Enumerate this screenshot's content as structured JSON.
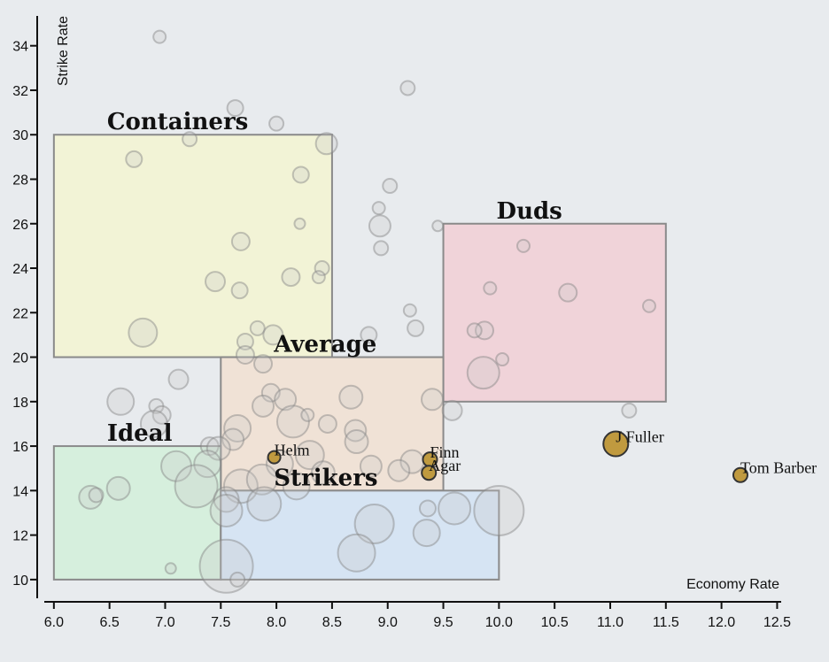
{
  "chart_data": {
    "type": "scatter",
    "title": "",
    "xlabel": "Economy Rate",
    "ylabel": "Strike Rate",
    "xlim": [
      5.85,
      12.6
    ],
    "ylim": [
      9.0,
      35.5
    ],
    "x_ticks": [
      "6.0",
      "6.5",
      "7.0",
      "7.5",
      "8.0",
      "8.5",
      "9.0",
      "9.5",
      "10.0",
      "10.5",
      "11.0",
      "11.5",
      "12.0",
      "12.5"
    ],
    "y_ticks": [
      "10",
      "12",
      "14",
      "16",
      "18",
      "20",
      "22",
      "24",
      "26",
      "28",
      "30",
      "32",
      "34"
    ],
    "zones": [
      {
        "label": "Containers",
        "x0": 6.0,
        "x1": 8.5,
        "y0": 20,
        "y1": 30,
        "color": "#f2f3d6"
      },
      {
        "label": "Duds",
        "x0": 9.5,
        "x1": 11.5,
        "y0": 18,
        "y1": 26,
        "color": "#f0d3d9"
      },
      {
        "label": "Average",
        "x0": 7.5,
        "x1": 9.5,
        "y0": 14,
        "y1": 20,
        "color": "#f0e2d6"
      },
      {
        "label": "Ideal",
        "x0": 6.0,
        "x1": 7.5,
        "y0": 10,
        "y1": 16,
        "color": "#d6efdd"
      },
      {
        "label": "Strikers",
        "x0": 7.5,
        "x1": 10.0,
        "y0": 10,
        "y1": 14,
        "color": "#d6e4f3"
      }
    ],
    "highlighted": [
      {
        "name": "Helm",
        "x": 7.98,
        "y": 15.5,
        "r": 7
      },
      {
        "name": "Finn",
        "x": 9.38,
        "y": 15.4,
        "r": 8
      },
      {
        "name": "Agar",
        "x": 9.37,
        "y": 14.8,
        "r": 8
      },
      {
        "name": "J Fuller",
        "x": 11.05,
        "y": 16.1,
        "r": 14
      },
      {
        "name": "Tom Barber",
        "x": 12.17,
        "y": 14.7,
        "r": 8
      }
    ],
    "background_points": [
      {
        "x": 6.95,
        "y": 34.4,
        "r": 7
      },
      {
        "x": 9.18,
        "y": 32.1,
        "r": 8
      },
      {
        "x": 7.63,
        "y": 31.2,
        "r": 9
      },
      {
        "x": 8.0,
        "y": 30.5,
        "r": 8
      },
      {
        "x": 8.45,
        "y": 29.6,
        "r": 12
      },
      {
        "x": 7.22,
        "y": 29.8,
        "r": 8
      },
      {
        "x": 6.72,
        "y": 28.9,
        "r": 9
      },
      {
        "x": 8.22,
        "y": 28.2,
        "r": 9
      },
      {
        "x": 9.02,
        "y": 27.7,
        "r": 8
      },
      {
        "x": 8.92,
        "y": 26.7,
        "r": 7
      },
      {
        "x": 8.93,
        "y": 25.9,
        "r": 12
      },
      {
        "x": 9.45,
        "y": 25.9,
        "r": 6
      },
      {
        "x": 8.21,
        "y": 26.0,
        "r": 6
      },
      {
        "x": 7.68,
        "y": 25.2,
        "r": 10
      },
      {
        "x": 10.22,
        "y": 25.0,
        "r": 7
      },
      {
        "x": 8.94,
        "y": 24.9,
        "r": 8
      },
      {
        "x": 8.41,
        "y": 24.0,
        "r": 8
      },
      {
        "x": 8.38,
        "y": 23.6,
        "r": 7
      },
      {
        "x": 8.13,
        "y": 23.6,
        "r": 10
      },
      {
        "x": 7.45,
        "y": 23.4,
        "r": 11
      },
      {
        "x": 7.67,
        "y": 23.0,
        "r": 9
      },
      {
        "x": 9.92,
        "y": 23.1,
        "r": 7
      },
      {
        "x": 10.62,
        "y": 22.9,
        "r": 10
      },
      {
        "x": 11.35,
        "y": 22.3,
        "r": 7
      },
      {
        "x": 9.2,
        "y": 22.1,
        "r": 7
      },
      {
        "x": 9.25,
        "y": 21.3,
        "r": 9
      },
      {
        "x": 9.87,
        "y": 21.2,
        "r": 10
      },
      {
        "x": 9.78,
        "y": 21.2,
        "r": 8
      },
      {
        "x": 6.8,
        "y": 21.1,
        "r": 16
      },
      {
        "x": 7.83,
        "y": 21.3,
        "r": 8
      },
      {
        "x": 7.72,
        "y": 20.7,
        "r": 9
      },
      {
        "x": 7.97,
        "y": 21.0,
        "r": 11
      },
      {
        "x": 8.83,
        "y": 21.0,
        "r": 9
      },
      {
        "x": 7.72,
        "y": 20.1,
        "r": 10
      },
      {
        "x": 7.88,
        "y": 19.7,
        "r": 10
      },
      {
        "x": 10.03,
        "y": 19.9,
        "r": 7
      },
      {
        "x": 9.86,
        "y": 19.3,
        "r": 18
      },
      {
        "x": 7.12,
        "y": 19.0,
        "r": 11
      },
      {
        "x": 6.6,
        "y": 18.0,
        "r": 15
      },
      {
        "x": 6.92,
        "y": 17.8,
        "r": 8
      },
      {
        "x": 7.95,
        "y": 18.4,
        "r": 10
      },
      {
        "x": 8.08,
        "y": 18.1,
        "r": 12
      },
      {
        "x": 8.67,
        "y": 18.2,
        "r": 13
      },
      {
        "x": 9.4,
        "y": 18.1,
        "r": 12
      },
      {
        "x": 7.88,
        "y": 17.8,
        "r": 12
      },
      {
        "x": 8.15,
        "y": 17.1,
        "r": 18
      },
      {
        "x": 8.28,
        "y": 17.4,
        "r": 7
      },
      {
        "x": 6.97,
        "y": 17.4,
        "r": 10
      },
      {
        "x": 6.9,
        "y": 17.0,
        "r": 15
      },
      {
        "x": 7.65,
        "y": 16.8,
        "r": 15
      },
      {
        "x": 8.46,
        "y": 17.0,
        "r": 10
      },
      {
        "x": 9.58,
        "y": 17.6,
        "r": 11
      },
      {
        "x": 11.17,
        "y": 17.6,
        "r": 8
      },
      {
        "x": 8.71,
        "y": 16.7,
        "r": 12
      },
      {
        "x": 7.61,
        "y": 16.3,
        "r": 12
      },
      {
        "x": 8.72,
        "y": 16.2,
        "r": 13
      },
      {
        "x": 7.4,
        "y": 16.0,
        "r": 10
      },
      {
        "x": 7.48,
        "y": 15.9,
        "r": 13
      },
      {
        "x": 8.3,
        "y": 15.6,
        "r": 16
      },
      {
        "x": 7.1,
        "y": 15.1,
        "r": 17
      },
      {
        "x": 7.38,
        "y": 15.2,
        "r": 15
      },
      {
        "x": 9.22,
        "y": 15.3,
        "r": 13
      },
      {
        "x": 8.03,
        "y": 15.2,
        "r": 15
      },
      {
        "x": 8.85,
        "y": 15.1,
        "r": 12
      },
      {
        "x": 8.42,
        "y": 14.8,
        "r": 13
      },
      {
        "x": 9.1,
        "y": 14.9,
        "r": 12
      },
      {
        "x": 7.28,
        "y": 14.2,
        "r": 24
      },
      {
        "x": 7.68,
        "y": 14.2,
        "r": 19
      },
      {
        "x": 7.87,
        "y": 14.5,
        "r": 17
      },
      {
        "x": 8.18,
        "y": 14.2,
        "r": 15
      },
      {
        "x": 7.55,
        "y": 13.6,
        "r": 14
      },
      {
        "x": 6.58,
        "y": 14.1,
        "r": 13
      },
      {
        "x": 6.33,
        "y": 13.7,
        "r": 13
      },
      {
        "x": 6.38,
        "y": 13.8,
        "r": 8
      },
      {
        "x": 7.89,
        "y": 13.4,
        "r": 19
      },
      {
        "x": 7.55,
        "y": 13.1,
        "r": 18
      },
      {
        "x": 9.36,
        "y": 13.2,
        "r": 9
      },
      {
        "x": 9.6,
        "y": 13.2,
        "r": 18
      },
      {
        "x": 10.0,
        "y": 13.1,
        "r": 28
      },
      {
        "x": 8.88,
        "y": 12.5,
        "r": 22
      },
      {
        "x": 9.35,
        "y": 12.1,
        "r": 15
      },
      {
        "x": 8.72,
        "y": 11.2,
        "r": 21
      },
      {
        "x": 7.05,
        "y": 10.5,
        "r": 6
      },
      {
        "x": 7.55,
        "y": 10.6,
        "r": 30
      },
      {
        "x": 7.65,
        "y": 10.0,
        "r": 8
      }
    ]
  }
}
